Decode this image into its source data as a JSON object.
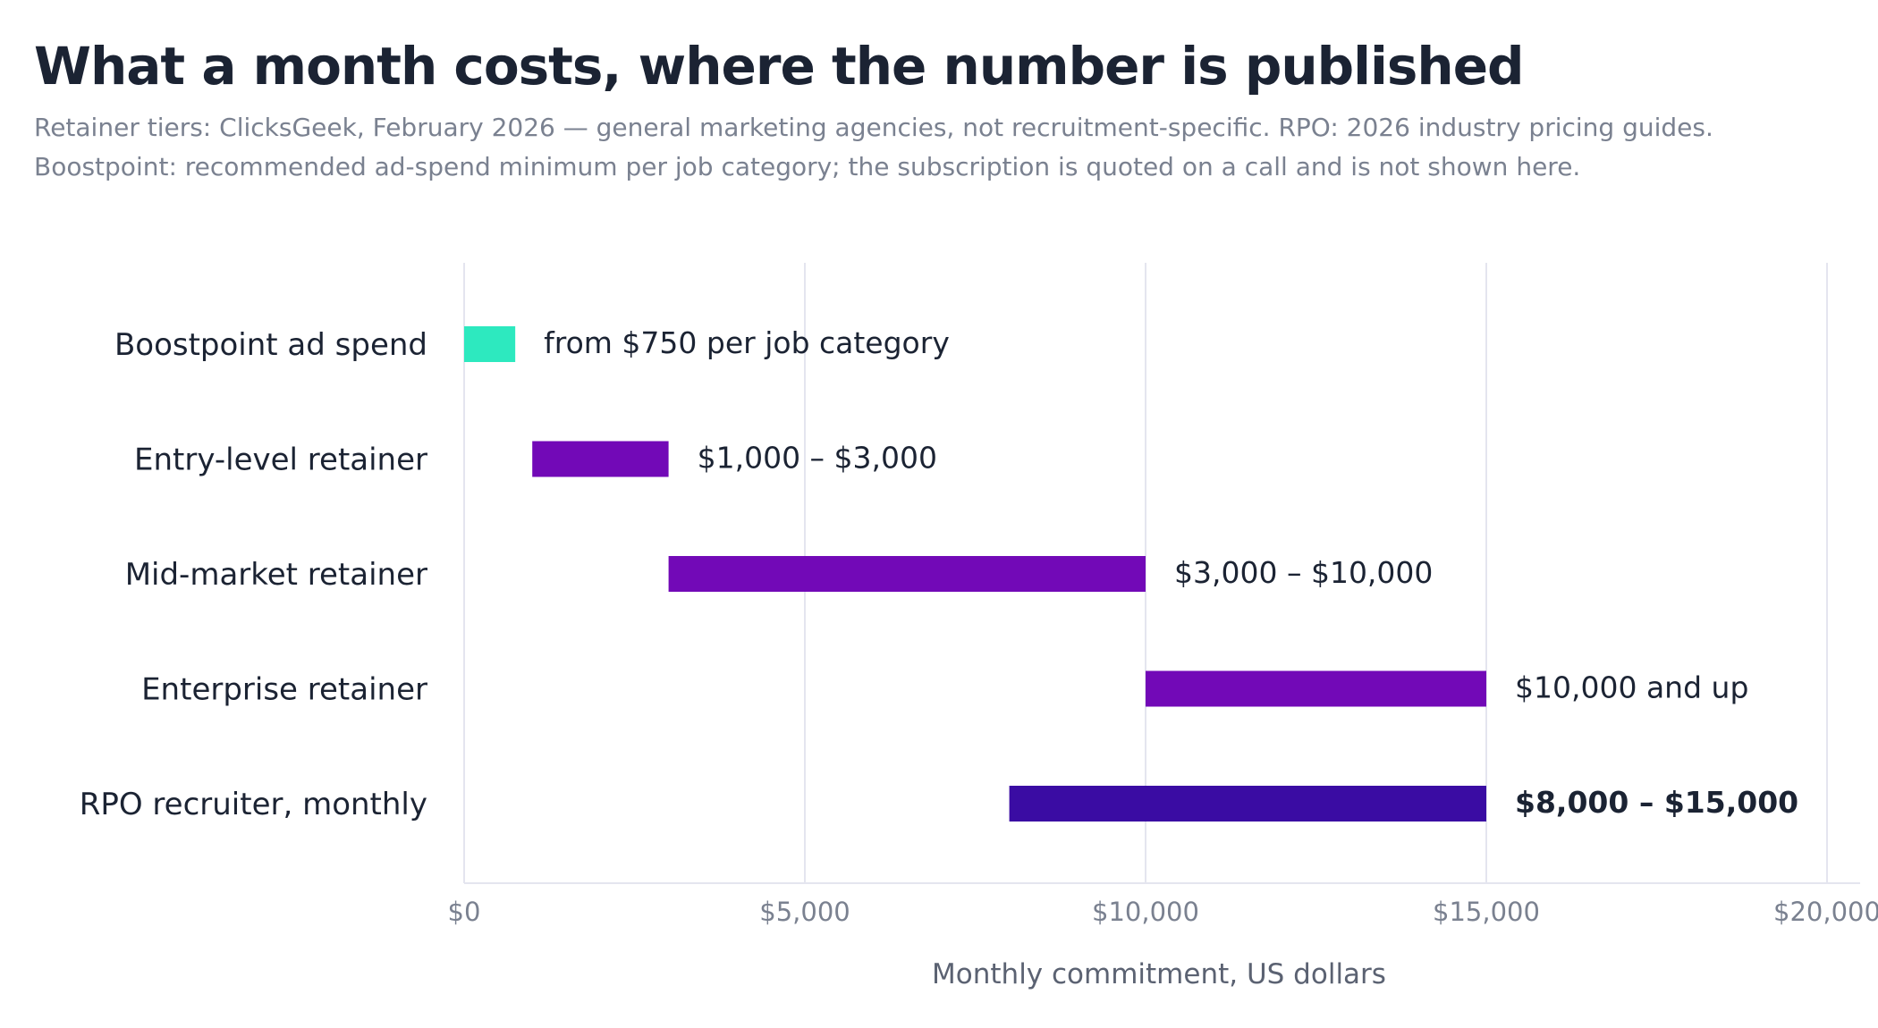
{
  "chart_data": {
    "type": "bar",
    "orientation": "horizontal",
    "bar_style": "floating-range",
    "title": "What a month costs, where the number is published",
    "subtitle": [
      "Retainer tiers: ClicksGeek, February 2026 — general marketing agencies, not recruitment-specific. RPO: 2026 industry pricing guides.",
      "Boostpoint: recommended ad-spend minimum per job category; the subscription is quoted on a call and is not shown here."
    ],
    "xlabel": "Monthly commitment, US dollars",
    "ylabel": "",
    "xlim": [
      0,
      20000
    ],
    "xticks": [
      0,
      5000,
      10000,
      15000,
      20000
    ],
    "xtick_labels": [
      "$0",
      "$5,000",
      "$10,000",
      "$15,000",
      "$20,000"
    ],
    "grid": "vertical",
    "legend": "none",
    "categories": [
      "Boostpoint ad spend",
      "Entry-level retainer",
      "Mid-market retainer",
      "Enterprise retainer",
      "RPO recruiter, monthly"
    ],
    "ranges": [
      {
        "start": 0,
        "end": 750,
        "label": "from $750 per job category",
        "color": "#2de9bf"
      },
      {
        "start": 1000,
        "end": 3000,
        "label": "$1,000 – $3,000",
        "color": "#7209b7"
      },
      {
        "start": 3000,
        "end": 10000,
        "label": "$3,000 – $10,000",
        "color": "#7209b7"
      },
      {
        "start": 10000,
        "end": 15000,
        "label": "$10,000 and up",
        "color": "#7209b7"
      },
      {
        "start": 8000,
        "end": 15000,
        "label": "$8,000 – $15,000",
        "color": "#3a0ca3"
      }
    ],
    "colors": {
      "text": "#1b2333",
      "muted": "#7a8190",
      "grid": "#e4e5ef"
    }
  }
}
